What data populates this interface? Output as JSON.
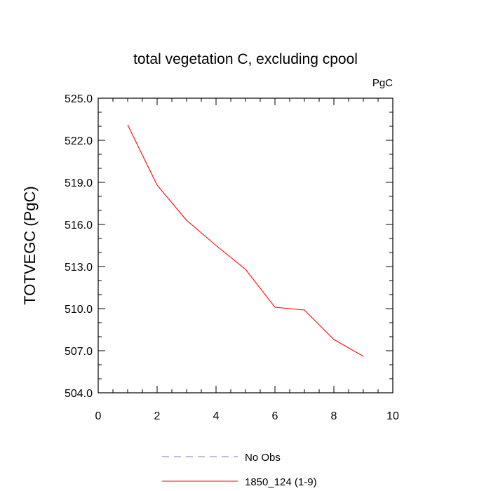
{
  "chart_data": {
    "type": "line",
    "title": "total vegetation C, excluding cpool",
    "units_label": "PgC",
    "xlabel": "",
    "ylabel": "TOTVEGC  (PgC)",
    "xlim": [
      0,
      10
    ],
    "ylim": [
      504.0,
      525.0
    ],
    "x_ticks": [
      "0",
      "2",
      "4",
      "6",
      "8",
      "10"
    ],
    "y_ticks": [
      "504.0",
      "507.0",
      "510.0",
      "513.0",
      "516.0",
      "519.0",
      "522.0",
      "525.0"
    ],
    "grid": false,
    "legend_position": "bottom",
    "series": [
      {
        "name": "No Obs",
        "color": "#7777dd",
        "style": "dashed",
        "x": [],
        "y": []
      },
      {
        "name": "1850_124 (1-9)",
        "color": "#ff0000",
        "style": "solid",
        "x": [
          1,
          2,
          3,
          4,
          5,
          6,
          7,
          8,
          9
        ],
        "y": [
          523.1,
          518.8,
          516.3,
          514.5,
          512.8,
          510.1,
          509.9,
          507.8,
          506.6
        ]
      }
    ]
  }
}
